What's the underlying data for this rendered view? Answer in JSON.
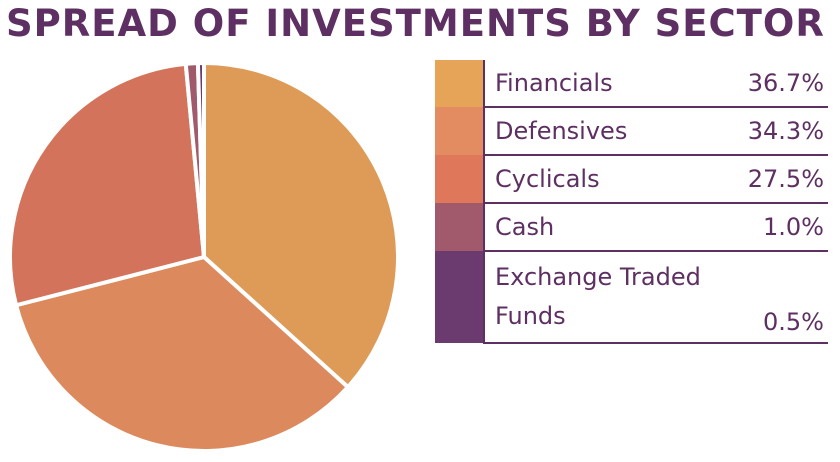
{
  "title": "SPREAD OF INVESTMENTS BY SECTOR",
  "chart_data": {
    "type": "pie",
    "title": "SPREAD OF INVESTMENTS BY SECTOR",
    "slices": [
      {
        "label": "Financials",
        "value": 36.7,
        "display": "36.7%",
        "color": "#dd9b57"
      },
      {
        "label": "Defensives",
        "value": 34.3,
        "display": "34.3%",
        "color": "#dc8a5d"
      },
      {
        "label": "Cyclicals",
        "value": 27.5,
        "display": "27.5%",
        "color": "#d4735b"
      },
      {
        "label": "Cash",
        "value": 1.0,
        "display": "1.0%",
        "color": "#a05a6c"
      },
      {
        "label": "Exchange Traded Funds",
        "value": 0.5,
        "display": "0.5%",
        "color": "#6b3a6e"
      }
    ],
    "legend_placement": "right"
  },
  "legend_colors": [
    "#e6a458",
    "#e48c61",
    "#df775a",
    "#a05a6c",
    "#6b3a6e"
  ]
}
